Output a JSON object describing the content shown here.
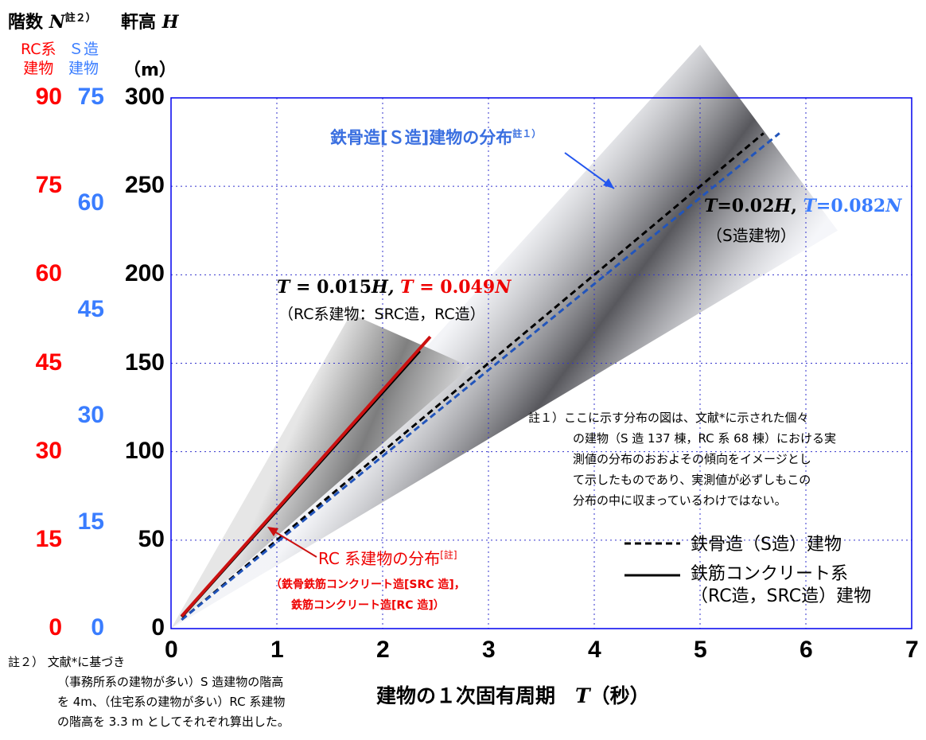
{
  "chart_data": {
    "type": "line",
    "title": "",
    "xlabel": "建物の１次固有周期",
    "xlabel_symbol": "T",
    "xlabel_unit": "（秒）",
    "ylabel": "軒高",
    "ylabel_symbol": "H",
    "ylabel_unit": "（m）",
    "y2label": "階数",
    "y2label_symbol": "N",
    "y2label_note": "註２）",
    "xlim": [
      0,
      7
    ],
    "ylim": [
      0,
      300
    ],
    "xticks": [
      "0",
      "1",
      "2",
      "3",
      "4",
      "5",
      "6",
      "7"
    ],
    "yticks": [
      "0",
      "50",
      "100",
      "150",
      "200",
      "250",
      "300"
    ],
    "rc_axis": {
      "label1": "RC系",
      "label2": "建物",
      "ticks": [
        "0",
        "15",
        "30",
        "45",
        "60",
        "75",
        "90"
      ],
      "color": "#ff0000"
    },
    "s_axis": {
      "label1": "Ｓ造",
      "label2": "建物",
      "ticks": [
        "0",
        "15",
        "30",
        "45",
        "60",
        "75"
      ],
      "tick_heights": [
        0,
        60,
        120,
        180,
        240,
        300
      ],
      "color": "#3a7dff"
    },
    "grid": true,
    "series": [
      {
        "name": "鉄骨造（S造）建物",
        "style": "dashed",
        "color": "#000000",
        "x": [
          0.1,
          5.6
        ],
        "y": [
          5,
          280
        ]
      },
      {
        "name": "S造 T=0.082N",
        "style": "dashed",
        "color": "#2255bb",
        "x": [
          0.1,
          5.75
        ],
        "y": [
          5,
          280
        ]
      },
      {
        "name": "鉄筋コンクリート系（RC造,SRC造）建物",
        "style": "solid",
        "color": "#000000",
        "x": [
          0.1,
          2.35
        ],
        "y": [
          6.7,
          157
        ]
      },
      {
        "name": "RC系 T=0.049N",
        "style": "solid",
        "color": "#cc1111",
        "x": [
          0.1,
          2.45
        ],
        "y": [
          7,
          165
        ]
      }
    ],
    "distributions": [
      {
        "name": "S造",
        "polygon": [
          [
            0,
            0
          ],
          [
            5.0,
            330
          ],
          [
            6.3,
            225
          ]
        ]
      },
      {
        "name": "RC系",
        "polygon": [
          [
            0,
            0
          ],
          [
            1.7,
            178
          ],
          [
            2.83,
            148
          ]
        ]
      }
    ],
    "legend": {
      "placement": "bottom-right",
      "items": [
        {
          "label": "鉄骨造（S造）建物"
        },
        {
          "label1": "鉄筋コンクリート系",
          "label2": "（RC造，SRC造）建物"
        }
      ]
    },
    "annotations": {
      "s_dist": "鉄骨造[Ｓ造]建物の分布",
      "s_dist_note": "註１）",
      "s_formula_a": "T",
      "s_formula_b": "=0.02",
      "s_formula_c": "H",
      ", ": "",
      "s_formula_d": "T",
      "s_formula_e": "=0.082",
      "s_formula_f": "N",
      "s_formula_sub": "（S造建物）",
      "rc_formula_a": "T",
      "rc_formula_b": " = 0.015",
      "rc_formula_c": "H,",
      "rc_formula_d": "T",
      "rc_formula_e": " = 0.049",
      "rc_formula_f": "N",
      "rc_formula_sub": "（RC系建物：SRC造，RC造）",
      "rc_dist": "RC 系建物の分布",
      "rc_dist_note": "[註]",
      "rc_dist_sub1": "（鉄骨鉄筋コンクリート造[SRC 造]，",
      "rc_dist_sub2": "鉄筋コンクリート造[RC 造]）"
    }
  },
  "notes": {
    "note1": [
      "註１）ここに示す分布の図は、文献*に示された個々",
      "の建物（S 造 137 棟，RC 系 68 棟）における実",
      "測値の分布のおおよその傾向をイメージとし",
      "て示したものであり、実測値が必ずしもこの",
      "分布の中に収まっているわけではない。"
    ],
    "note2": [
      "註２） 文献*に基づき",
      "（事務所系の建物が多い）S 造建物の階高",
      "を 4m、（住宅系の建物が多い）RC 系建物",
      "の階高を 3.3 m としてそれぞれ算出した。"
    ]
  }
}
